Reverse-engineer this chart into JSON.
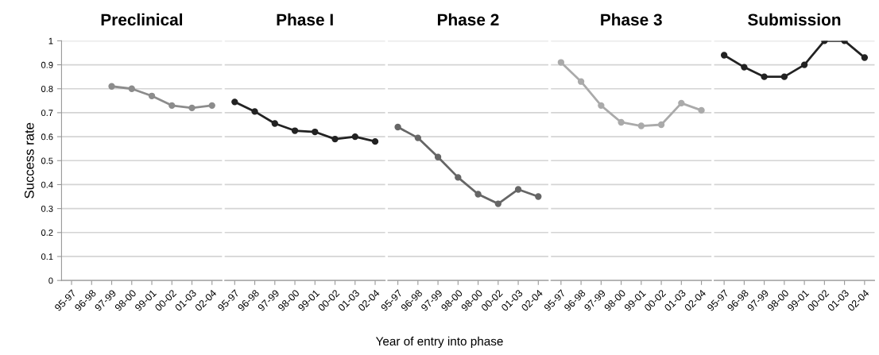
{
  "chart_data": [
    {
      "type": "line",
      "title": "Preclinical",
      "ylabel": "Success rate",
      "categories": [
        "95-97",
        "96-98",
        "97-99",
        "98-00",
        "99-01",
        "00-02",
        "01-03",
        "02-04"
      ],
      "series": [
        {
          "color": "#8c8c8c",
          "values": [
            null,
            null,
            0.81,
            0.8,
            0.77,
            0.73,
            0.72,
            0.73
          ]
        }
      ],
      "ylim": [
        0,
        1
      ],
      "yticks": [
        0,
        0.1,
        0.2,
        0.3,
        0.4,
        0.5,
        0.6,
        0.7,
        0.8,
        0.9,
        1
      ],
      "grid": "y",
      "marker": "circle",
      "line_style": "solid"
    },
    {
      "type": "line",
      "title": "Phase I",
      "categories": [
        "95-97",
        "96-98",
        "97-99",
        "98-00",
        "99-01",
        "00-02",
        "01-03",
        "02-04"
      ],
      "series": [
        {
          "color": "#222222",
          "values": [
            0.745,
            0.705,
            0.655,
            0.625,
            0.62,
            0.59,
            0.6,
            0.58
          ]
        }
      ],
      "ylim": [
        0,
        1
      ],
      "yticks": [
        0,
        0.1,
        0.2,
        0.3,
        0.4,
        0.5,
        0.6,
        0.7,
        0.8,
        0.9,
        1
      ],
      "tick_labels": "x",
      "grid": "y",
      "marker": "circle",
      "line_style": "solid"
    },
    {
      "type": "line",
      "title": "Phase 2",
      "xlabel": "Year of entry into phase",
      "categories": [
        "95-97",
        "96-98",
        "97-99",
        "98-00",
        "98-00",
        "00-02",
        "01-03",
        "02-04"
      ],
      "series": [
        {
          "color": "#666666",
          "values": [
            0.64,
            0.595,
            0.515,
            0.43,
            0.36,
            0.32,
            0.38,
            0.35
          ]
        }
      ],
      "ylim": [
        0,
        1
      ],
      "yticks": [
        0,
        0.1,
        0.2,
        0.3,
        0.4,
        0.5,
        0.6,
        0.7,
        0.8,
        0.9,
        1
      ],
      "tick_labels": "x",
      "grid": "y",
      "marker": "circle",
      "line_style": "solid"
    },
    {
      "type": "line",
      "title": "Phase 3",
      "categories": [
        "95-97",
        "96-98",
        "97-99",
        "98-00",
        "99-01",
        "00-02",
        "01-03",
        "02-04"
      ],
      "series": [
        {
          "color": "#aaaaaa",
          "values": [
            0.91,
            0.83,
            0.73,
            0.66,
            0.645,
            0.65,
            0.74,
            0.71
          ]
        }
      ],
      "ylim": [
        0,
        1
      ],
      "yticks": [
        0,
        0.1,
        0.2,
        0.3,
        0.4,
        0.5,
        0.6,
        0.7,
        0.8,
        0.9,
        1
      ],
      "tick_labels": "x",
      "grid": "y",
      "marker": "circle",
      "line_style": "solid"
    },
    {
      "type": "line",
      "title": "Submission",
      "categories": [
        "95-97",
        "96-98",
        "97-99",
        "98-00",
        "99-01",
        "00-02",
        "01-03",
        "02-04"
      ],
      "series": [
        {
          "color": "#222222",
          "values": [
            0.94,
            0.89,
            0.85,
            0.85,
            0.9,
            1.0,
            1.0,
            0.93
          ]
        }
      ],
      "ylim": [
        0,
        1
      ],
      "yticks": [
        0,
        0.1,
        0.2,
        0.3,
        0.4,
        0.5,
        0.6,
        0.7,
        0.8,
        0.9,
        1
      ],
      "tick_labels": "x",
      "grid": "y",
      "marker": "circle",
      "line_style": "solid"
    }
  ]
}
